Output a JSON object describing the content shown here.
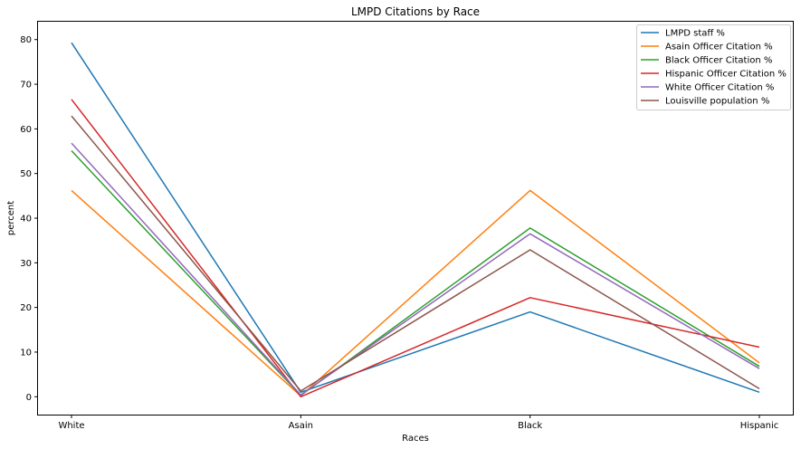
{
  "chart_data": {
    "type": "line",
    "title": "LMPD Citations by Race",
    "xlabel": "Races",
    "ylabel": "percent",
    "categories": [
      "White",
      "Asain",
      "Black",
      "Hispanic"
    ],
    "ylim": [
      -4,
      84
    ],
    "yticks": [
      0,
      10,
      20,
      30,
      40,
      50,
      60,
      70,
      80
    ],
    "grid": false,
    "legend_position": "top-right",
    "series": [
      {
        "name": "LMPD staff %",
        "color": "#1f77b4",
        "values": [
          79.3,
          1.0,
          19.0,
          1.0
        ]
      },
      {
        "name": "Asain Officer Citation %",
        "color": "#ff7f0e",
        "values": [
          46.2,
          0.2,
          46.2,
          7.6
        ]
      },
      {
        "name": "Black Officer Citation %",
        "color": "#2ca02c",
        "values": [
          55.1,
          0.3,
          37.8,
          6.8
        ]
      },
      {
        "name": "Hispanic Officer Citation %",
        "color": "#d62728",
        "values": [
          66.6,
          0.0,
          22.2,
          11.1
        ]
      },
      {
        "name": "White Officer Citation %",
        "color": "#9467bd",
        "values": [
          56.8,
          0.4,
          36.5,
          6.3
        ]
      },
      {
        "name": "Louisville population %",
        "color": "#8c564b",
        "values": [
          62.9,
          1.3,
          32.9,
          1.8
        ]
      }
    ]
  }
}
